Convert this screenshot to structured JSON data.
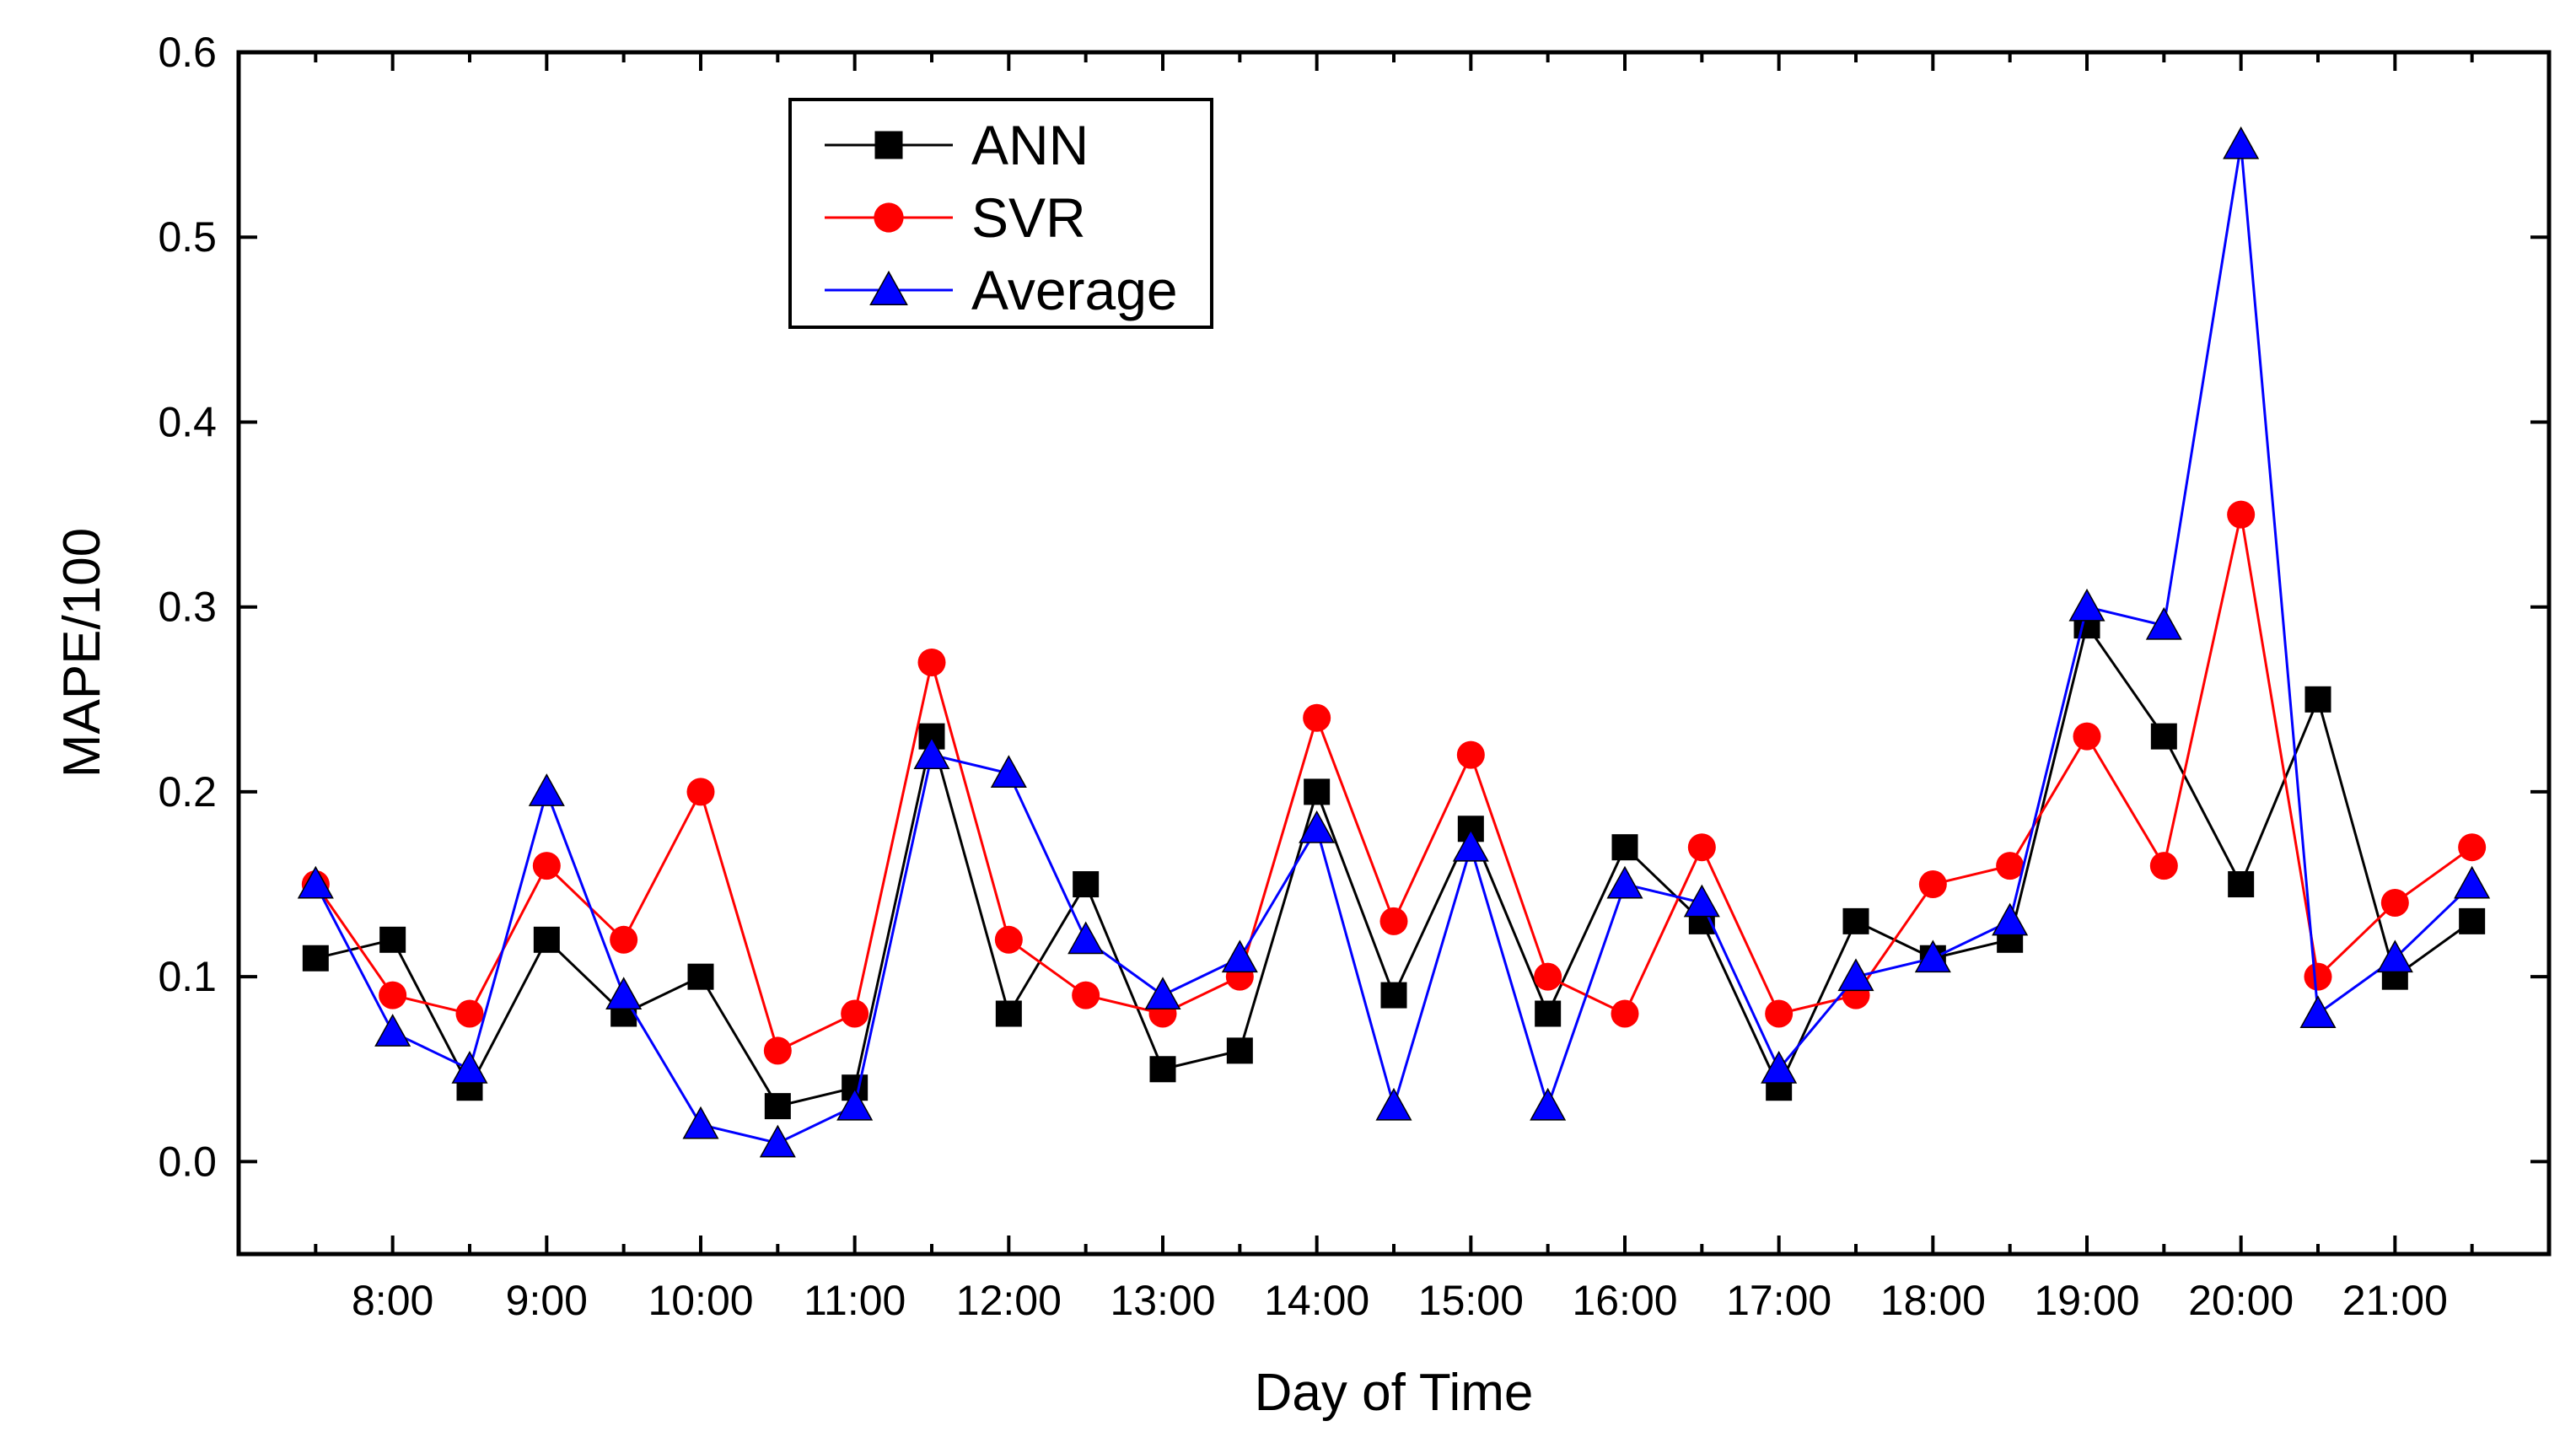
{
  "chart_data": {
    "type": "line",
    "xlabel": "Day of Time",
    "ylabel": "MAPE/100",
    "ylim": [
      -0.05,
      0.6
    ],
    "yticks": [
      0.0,
      0.1,
      0.2,
      0.3,
      0.4,
      0.5,
      0.6
    ],
    "ytick_labels": [
      "0.0",
      "0.1",
      "0.2",
      "0.3",
      "0.4",
      "0.5",
      "0.6"
    ],
    "xlim": [
      "7:00",
      "22:00"
    ],
    "x": [
      "7:30",
      "8:00",
      "8:30",
      "9:00",
      "9:30",
      "10:00",
      "10:30",
      "11:00",
      "11:30",
      "12:00",
      "12:30",
      "13:00",
      "13:30",
      "14:00",
      "14:30",
      "15:00",
      "15:30",
      "16:00",
      "16:30",
      "17:00",
      "17:30",
      "18:00",
      "18:30",
      "19:00",
      "19:30",
      "20:00",
      "20:30",
      "21:00",
      "21:30"
    ],
    "xtick_labels": [
      "8:00",
      "9:00",
      "10:00",
      "11:00",
      "12:00",
      "13:00",
      "14:00",
      "15:00",
      "16:00",
      "17:00",
      "18:00",
      "19:00",
      "20:00",
      "21:00"
    ],
    "legend_position": "top-left",
    "grid": false,
    "series": [
      {
        "name": "ANN",
        "color": "#000000",
        "marker": "square",
        "values": [
          0.11,
          0.12,
          0.04,
          0.12,
          0.08,
          0.1,
          0.03,
          0.04,
          0.23,
          0.08,
          0.15,
          0.05,
          0.06,
          0.2,
          0.09,
          0.18,
          0.08,
          0.17,
          0.13,
          0.04,
          0.13,
          0.11,
          0.12,
          0.29,
          0.23,
          0.15,
          0.25,
          0.1,
          0.13
        ]
      },
      {
        "name": "SVR",
        "color": "#ff0000",
        "marker": "circle",
        "values": [
          0.15,
          0.09,
          0.08,
          0.16,
          0.12,
          0.2,
          0.06,
          0.08,
          0.27,
          0.12,
          0.09,
          0.08,
          0.1,
          0.24,
          0.13,
          0.22,
          0.1,
          0.08,
          0.17,
          0.08,
          0.09,
          0.15,
          0.16,
          0.23,
          0.16,
          0.35,
          0.1,
          0.14,
          0.17
        ]
      },
      {
        "name": "Average",
        "color": "#0000ff",
        "marker": "triangle",
        "values": [
          0.15,
          0.07,
          0.05,
          0.2,
          0.09,
          0.02,
          0.01,
          0.03,
          0.22,
          0.21,
          0.12,
          0.09,
          0.11,
          0.18,
          0.03,
          0.17,
          0.03,
          0.15,
          0.14,
          0.05,
          0.1,
          0.11,
          0.13,
          0.3,
          0.29,
          0.55,
          0.08,
          0.11,
          0.15
        ]
      }
    ]
  }
}
